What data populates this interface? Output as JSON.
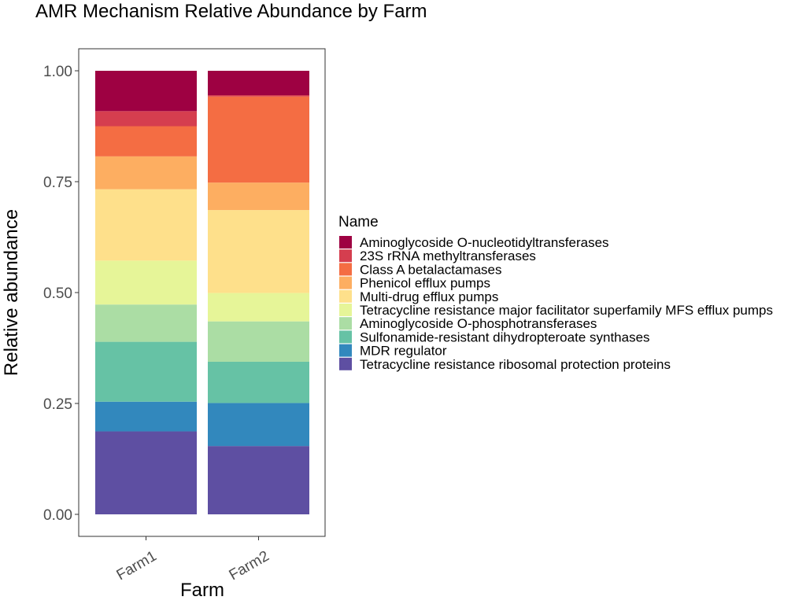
{
  "chart_data": {
    "type": "bar",
    "stacked": true,
    "normalized": true,
    "title": "AMR Mechanism Relative Abundance by Farm",
    "xlabel": "Farm",
    "ylabel": "Relative abundance",
    "categories": [
      "Farm1",
      "Farm2"
    ],
    "ylim": [
      0,
      1
    ],
    "yticks": [
      0,
      0.25,
      0.5,
      0.75,
      1
    ],
    "ytick_labels": [
      "0.00",
      "0.25",
      "0.50",
      "0.75",
      "1.00"
    ],
    "grid": false,
    "legend": {
      "title": "Name",
      "position": "right"
    },
    "series": [
      {
        "name": "Aminoglycoside O-nucleotidyltransferases",
        "color": "#9E0142",
        "values": [
          0.091,
          0.055
        ]
      },
      {
        "name": "23S rRNA methyltransferases",
        "color": "#D53E4F",
        "values": [
          0.034,
          0.003
        ]
      },
      {
        "name": "Class A betalactamases",
        "color": "#F46D43",
        "values": [
          0.068,
          0.194
        ]
      },
      {
        "name": "Phenicol efflux pumps",
        "color": "#FDAE61",
        "values": [
          0.074,
          0.062
        ]
      },
      {
        "name": "Multi-drug efflux pumps",
        "color": "#FEE08B",
        "values": [
          0.161,
          0.187
        ]
      },
      {
        "name": "Tetracycline resistance major facilitator superfamily MFS efflux pumps",
        "color": "#E6F598",
        "values": [
          0.099,
          0.064
        ]
      },
      {
        "name": "Aminoglycoside O-phosphotransferases",
        "color": "#ABDDA4",
        "values": [
          0.084,
          0.091
        ]
      },
      {
        "name": "Sulfonamide-resistant dihydropteroate synthases",
        "color": "#66C2A5",
        "values": [
          0.135,
          0.093
        ]
      },
      {
        "name": "MDR regulator",
        "color": "#3288BD",
        "values": [
          0.067,
          0.097
        ]
      },
      {
        "name": "Tetracycline resistance ribosomal protection proteins",
        "color": "#5E4FA2",
        "values": [
          0.187,
          0.154
        ]
      }
    ]
  }
}
